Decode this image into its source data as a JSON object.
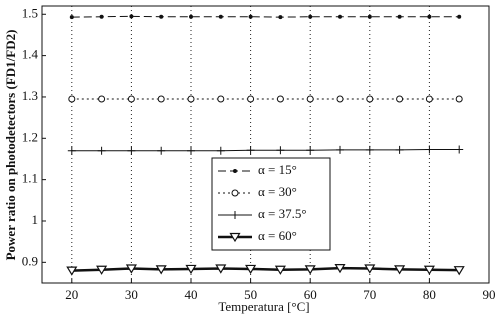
{
  "chart_data": {
    "type": "line",
    "x_label": "Temperatura [°C]",
    "y_label": "Power ratio on photodetectors (FD1/FD2)",
    "x": [
      20,
      25,
      30,
      35,
      40,
      45,
      50,
      55,
      60,
      65,
      70,
      75,
      80,
      85
    ],
    "series": [
      {
        "name": "α = 15°",
        "color": "#111111",
        "dash": "8,4",
        "marker": "dot",
        "width": 1,
        "values": [
          1.493,
          1.494,
          1.495,
          1.494,
          1.494,
          1.494,
          1.494,
          1.493,
          1.494,
          1.494,
          1.494,
          1.494,
          1.494,
          1.494
        ]
      },
      {
        "name": "α = 30°",
        "color": "#111111",
        "dash": "2,3",
        "marker": "circle",
        "width": 1,
        "values": [
          1.295,
          1.295,
          1.295,
          1.295,
          1.295,
          1.295,
          1.295,
          1.295,
          1.295,
          1.295,
          1.295,
          1.295,
          1.295,
          1.295
        ]
      },
      {
        "name": "α = 37.5°",
        "color": "#111111",
        "dash": "none",
        "marker": "plus",
        "width": 1,
        "values": [
          1.17,
          1.17,
          1.17,
          1.17,
          1.17,
          1.17,
          1.171,
          1.171,
          1.171,
          1.172,
          1.172,
          1.172,
          1.173,
          1.173
        ]
      },
      {
        "name": "α = 60°",
        "color": "#111111",
        "dash": "none",
        "marker": "triangle-down",
        "width": 2.5,
        "values": [
          0.88,
          0.882,
          0.885,
          0.883,
          0.884,
          0.885,
          0.884,
          0.882,
          0.883,
          0.886,
          0.885,
          0.883,
          0.882,
          0.881
        ]
      }
    ],
    "xlim": [
      15,
      90
    ],
    "xticks": [
      20,
      30,
      40,
      50,
      60,
      70,
      80,
      90
    ],
    "ylim": [
      0.85,
      1.52
    ],
    "yticks": [
      0.9,
      1,
      1.1,
      1.2,
      1.3,
      1.4,
      1.5
    ],
    "grid": "x"
  }
}
